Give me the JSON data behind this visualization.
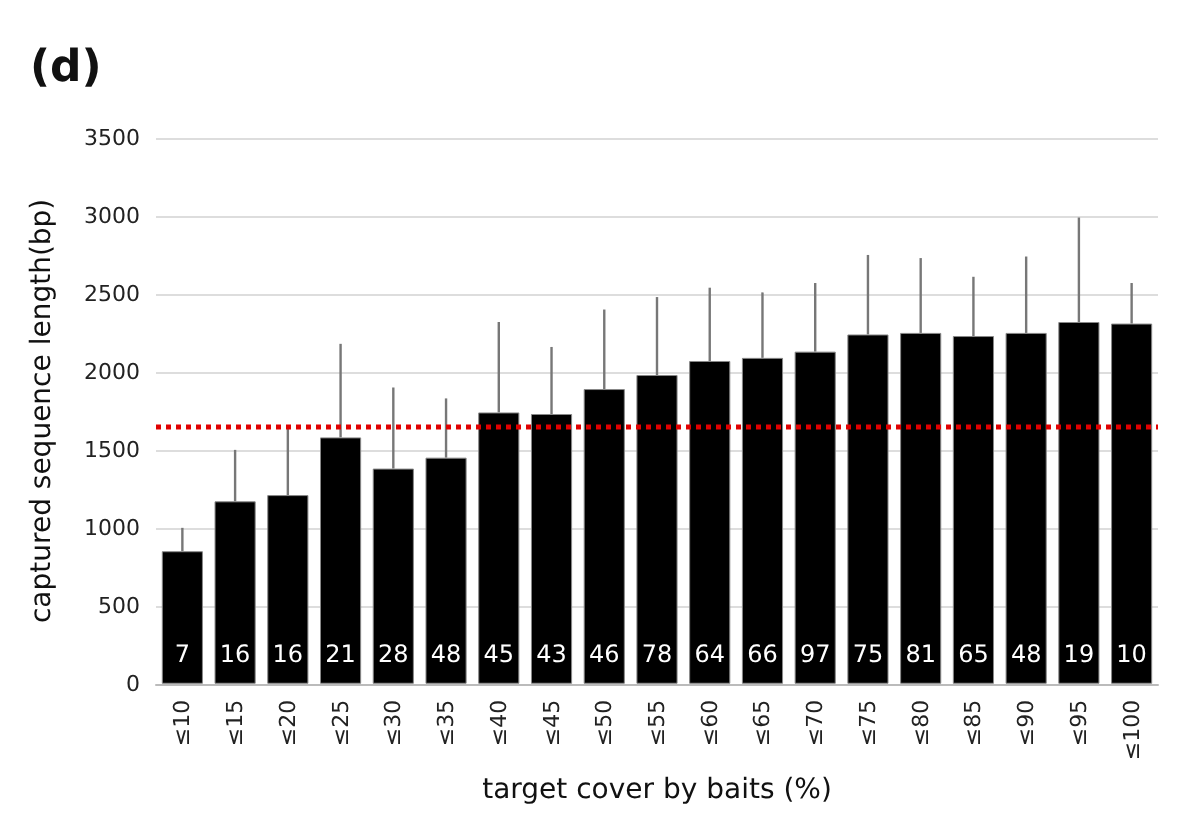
{
  "chart_data": {
    "type": "bar",
    "title": "(d)",
    "xlabel": "target cover by baits (%)",
    "ylabel": "captured sequence length(bp)",
    "categories": [
      "≤10",
      "≤15",
      "≤20",
      "≤25",
      "≤30",
      "≤35",
      "≤40",
      "≤45",
      "≤50",
      "≤55",
      "≤60",
      "≤65",
      "≤70",
      "≤75",
      "≤80",
      "≤85",
      "≤90",
      "≤95",
      "≤100"
    ],
    "values": [
      850,
      1170,
      1210,
      1580,
      1380,
      1450,
      1740,
      1730,
      1890,
      1980,
      2070,
      2090,
      2130,
      2240,
      2250,
      2230,
      2250,
      2320,
      2310
    ],
    "color": "#000000",
    "errors": [
      [
        850,
        1000
      ],
      [
        1170,
        1500
      ],
      [
        1210,
        1650
      ],
      [
        1580,
        2180
      ],
      [
        1380,
        1900
      ],
      [
        1450,
        1830
      ],
      [
        1740,
        2320
      ],
      [
        1730,
        2160
      ],
      [
        1890,
        2400
      ],
      [
        1980,
        2480
      ],
      [
        2070,
        2540
      ],
      [
        2090,
        2510
      ],
      [
        2130,
        2570
      ],
      [
        2240,
        2750
      ],
      [
        2250,
        2730
      ],
      [
        2230,
        2610
      ],
      [
        2250,
        2740
      ],
      [
        2320,
        2990
      ],
      [
        2310,
        2570
      ]
    ],
    "annotations": [
      "7",
      "16",
      "16",
      "21",
      "28",
      "48",
      "45",
      "43",
      "46",
      "78",
      "64",
      "66",
      "97",
      "75",
      "81",
      "65",
      "48",
      "19",
      "10"
    ],
    "ref_lines": [
      {
        "axis": "y",
        "value": 1650,
        "color": "#e00000",
        "line_style": "dotted"
      }
    ],
    "ylim": [
      0,
      3500
    ],
    "yticks": [
      0,
      500,
      1000,
      1500,
      2000,
      2500,
      3000,
      3500
    ],
    "grid": "y"
  }
}
